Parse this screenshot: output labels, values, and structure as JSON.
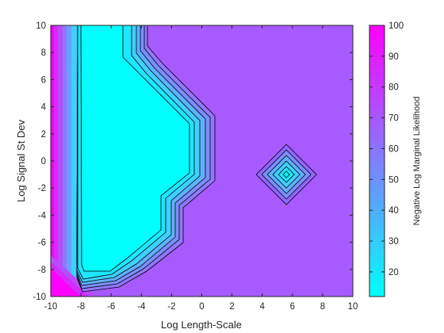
{
  "chart_data": {
    "type": "contour",
    "xlabel": "Log Length-Scale",
    "ylabel": "Log Signal St Dev",
    "colorbar_label": "Negative Log Marginal Likelihood",
    "xlim": [
      -10,
      10
    ],
    "ylim": [
      -10,
      10
    ],
    "x_ticks": [
      "-10",
      "-8",
      "-6",
      "-4",
      "-2",
      "0",
      "2",
      "4",
      "6",
      "8",
      "10"
    ],
    "y_ticks": [
      "-10",
      "-8",
      "-6",
      "-4",
      "-2",
      "0",
      "2",
      "4",
      "6",
      "8",
      "10"
    ],
    "colorbar_range": [
      12,
      100
    ],
    "colorbar_ticks": [
      "20",
      "30",
      "40",
      "50",
      "60",
      "70",
      "80",
      "90",
      "100"
    ],
    "colormap": "cool",
    "colors": {
      "low": "#00ffff",
      "high": "#ff00ff",
      "plateau": "#a65aff"
    },
    "regions": [
      {
        "value": 12,
        "description_level": "minimum basin",
        "x_range": [
          -8,
          -1
        ],
        "y_range": [
          -8,
          10
        ]
      },
      {
        "value": 70,
        "description_level": "plateau",
        "x_range": [
          -4,
          10
        ],
        "y_range": [
          -10,
          10
        ]
      },
      {
        "value": 100,
        "description_level": "maximum",
        "x_range": [
          -10,
          -9
        ],
        "y_range": [
          -10,
          10
        ]
      }
    ],
    "local_minimum": {
      "x": 5.6,
      "y": -1.0
    },
    "contour_levels": [
      20,
      30,
      40,
      50,
      60
    ]
  }
}
